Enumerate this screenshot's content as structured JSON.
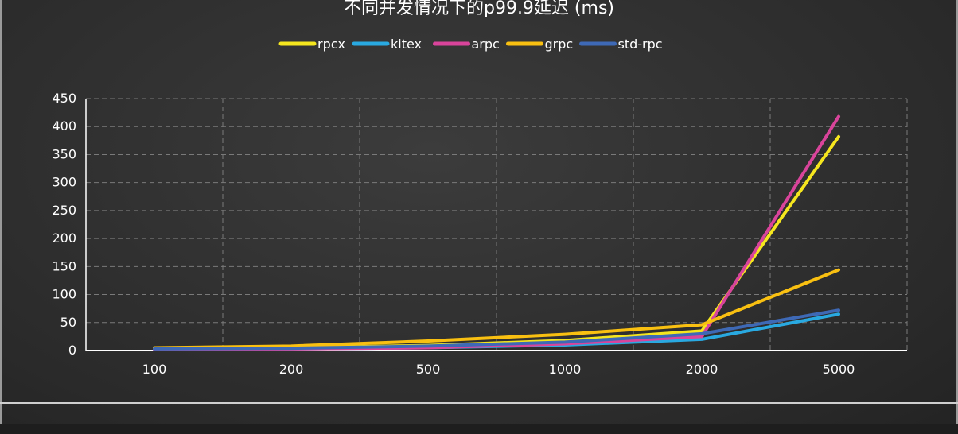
{
  "chart_data": {
    "type": "line",
    "title": "不同并发情况下的p99.9延迟 (ms)",
    "xlabel": "",
    "ylabel": "",
    "categories": [
      "100",
      "200",
      "500",
      "1000",
      "2000",
      "5000"
    ],
    "ylim": [
      0,
      450
    ],
    "yticks": [
      0,
      50,
      100,
      150,
      200,
      250,
      300,
      350,
      400,
      450
    ],
    "grid": true,
    "legend_position": "top-center",
    "series": [
      {
        "name": "rpcx",
        "color": "#f5e61e",
        "values": [
          3,
          5,
          9,
          18,
          35,
          382
        ]
      },
      {
        "name": "kitex",
        "color": "#29a9e1",
        "values": [
          2,
          3,
          5,
          10,
          20,
          65
        ]
      },
      {
        "name": "arpc",
        "color": "#d9449b",
        "values": [
          2,
          3,
          5,
          12,
          25,
          418
        ]
      },
      {
        "name": "grpc",
        "color": "#f9c011",
        "values": [
          5,
          8,
          17,
          29,
          46,
          144
        ]
      },
      {
        "name": "std-rpc",
        "color": "#3e69b6",
        "values": [
          3,
          4,
          8,
          15,
          30,
          72
        ]
      }
    ]
  }
}
